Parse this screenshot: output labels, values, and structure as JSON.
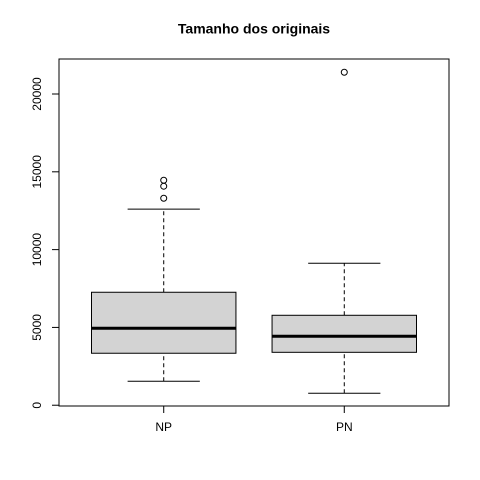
{
  "chart_data": {
    "type": "boxplot",
    "title": "Tamanho dos originais",
    "categories": [
      "NP",
      "PN"
    ],
    "boxes": [
      {
        "low": 1540,
        "q1": 3340,
        "median": 4950,
        "q3": 7260,
        "high": 12600,
        "outliers": [
          13300,
          14075,
          14460
        ]
      },
      {
        "low": 770,
        "q1": 3400,
        "median": 4430,
        "q3": 5780,
        "high": 9125,
        "outliers": [
          21400
        ]
      }
    ],
    "color": "#d3d3d3",
    "ylim": [
      -50,
      22250
    ],
    "yticks": [
      0,
      5000,
      10000,
      15000,
      20000
    ]
  }
}
